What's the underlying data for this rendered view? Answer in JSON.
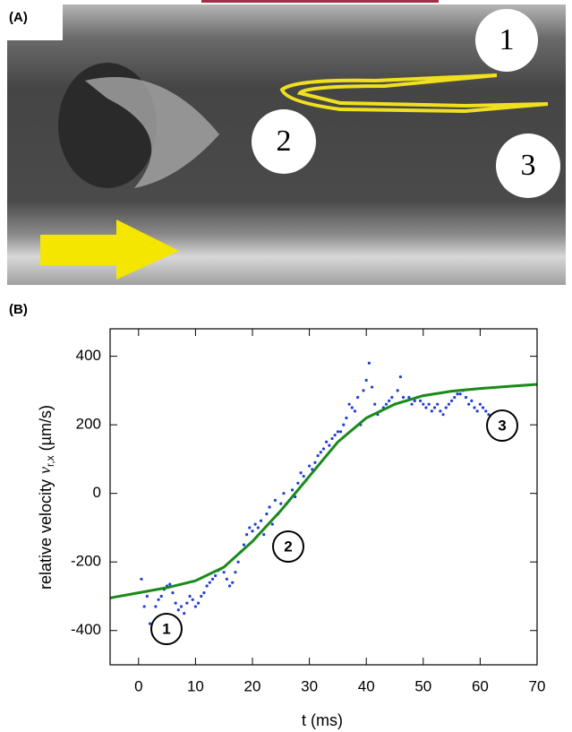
{
  "panel_a": {
    "label": "(A)",
    "markers": [
      "1",
      "2",
      "3"
    ]
  },
  "chart_data": {
    "type": "scatter",
    "panel_label": "(B)",
    "xlabel": "t (ms)",
    "ylabel": {
      "text": "relative velocity",
      "symbol": "v",
      "subscript": "r,x",
      "unit": "(µm/s)"
    },
    "xlim": [
      -5,
      70
    ],
    "xticks": [
      0,
      10,
      20,
      30,
      40,
      50,
      60,
      70
    ],
    "ylim": [
      -500,
      480
    ],
    "yticks": [
      -400,
      -200,
      0,
      200,
      400
    ],
    "scatter": {
      "color": "#1f3fd6",
      "x": [
        0.5,
        1,
        1.5,
        2,
        2.5,
        3,
        3.5,
        4,
        4.5,
        5,
        5.5,
        6,
        6.5,
        7,
        7.5,
        8,
        8.5,
        9,
        9.5,
        10,
        10.5,
        11,
        11.5,
        12,
        12.5,
        13,
        13.5,
        14,
        14.5,
        15,
        15.5,
        16,
        16.5,
        17,
        17.5,
        18,
        18.5,
        19,
        19.5,
        20,
        20.5,
        21,
        21.5,
        22,
        22.5,
        23,
        23.5,
        24,
        24.5,
        25,
        25.5,
        26,
        26.5,
        27,
        27.5,
        28,
        28.5,
        29,
        29.5,
        30,
        30.5,
        31,
        31.5,
        32,
        32.5,
        33,
        33.5,
        34,
        34.5,
        35,
        35.5,
        36,
        36.5,
        37,
        37.5,
        38,
        38.5,
        39,
        39.5,
        40,
        40.5,
        41,
        41.5,
        42,
        42.5,
        43,
        43.5,
        44,
        44.5,
        45,
        45.5,
        46,
        46.5,
        47,
        47.5,
        48,
        48.5,
        49,
        49.5,
        50,
        50.5,
        51,
        51.5,
        52,
        52.5,
        53,
        53.5,
        54,
        54.5,
        55,
        55.5,
        56,
        56.5,
        57,
        57.5,
        58,
        58.5,
        59,
        59.5,
        60,
        60.5,
        61,
        61.5
      ],
      "values": [
        -250,
        -330,
        -300,
        -380,
        -410,
        -330,
        -310,
        -300,
        -280,
        -270,
        -265,
        -290,
        -320,
        -340,
        -330,
        -350,
        -320,
        -300,
        -310,
        -330,
        -320,
        -300,
        -290,
        -270,
        -260,
        -250,
        -240,
        -225,
        -220,
        -230,
        -250,
        -270,
        -260,
        -230,
        -200,
        -170,
        -150,
        -120,
        -100,
        -110,
        -90,
        -100,
        -80,
        -120,
        -60,
        -40,
        -90,
        -20,
        -60,
        -30,
        0,
        -30,
        -20,
        10,
        -10,
        30,
        60,
        50,
        40,
        80,
        70,
        90,
        110,
        120,
        130,
        150,
        140,
        160,
        170,
        180,
        180,
        200,
        220,
        260,
        250,
        240,
        280,
        200,
        300,
        330,
        380,
        310,
        260,
        230,
        240,
        250,
        260,
        270,
        280,
        260,
        300,
        340,
        280,
        270,
        280,
        260,
        270,
        280,
        270,
        260,
        250,
        260,
        240,
        250,
        260,
        240,
        230,
        250,
        260,
        270,
        280,
        290,
        290,
        300,
        280,
        260,
        270,
        250,
        240,
        260,
        250,
        240,
        230
      ]
    },
    "fit": {
      "color": "#1a8a1a",
      "x": [
        -5,
        0,
        5,
        10,
        15,
        20,
        25,
        27,
        30,
        35,
        40,
        45,
        50,
        55,
        60,
        65,
        70
      ],
      "values": [
        -305,
        -290,
        -275,
        -255,
        -215,
        -140,
        -50,
        -10,
        50,
        150,
        220,
        260,
        285,
        298,
        306,
        312,
        318
      ]
    },
    "annotations": [
      "1",
      "2",
      "3"
    ]
  }
}
